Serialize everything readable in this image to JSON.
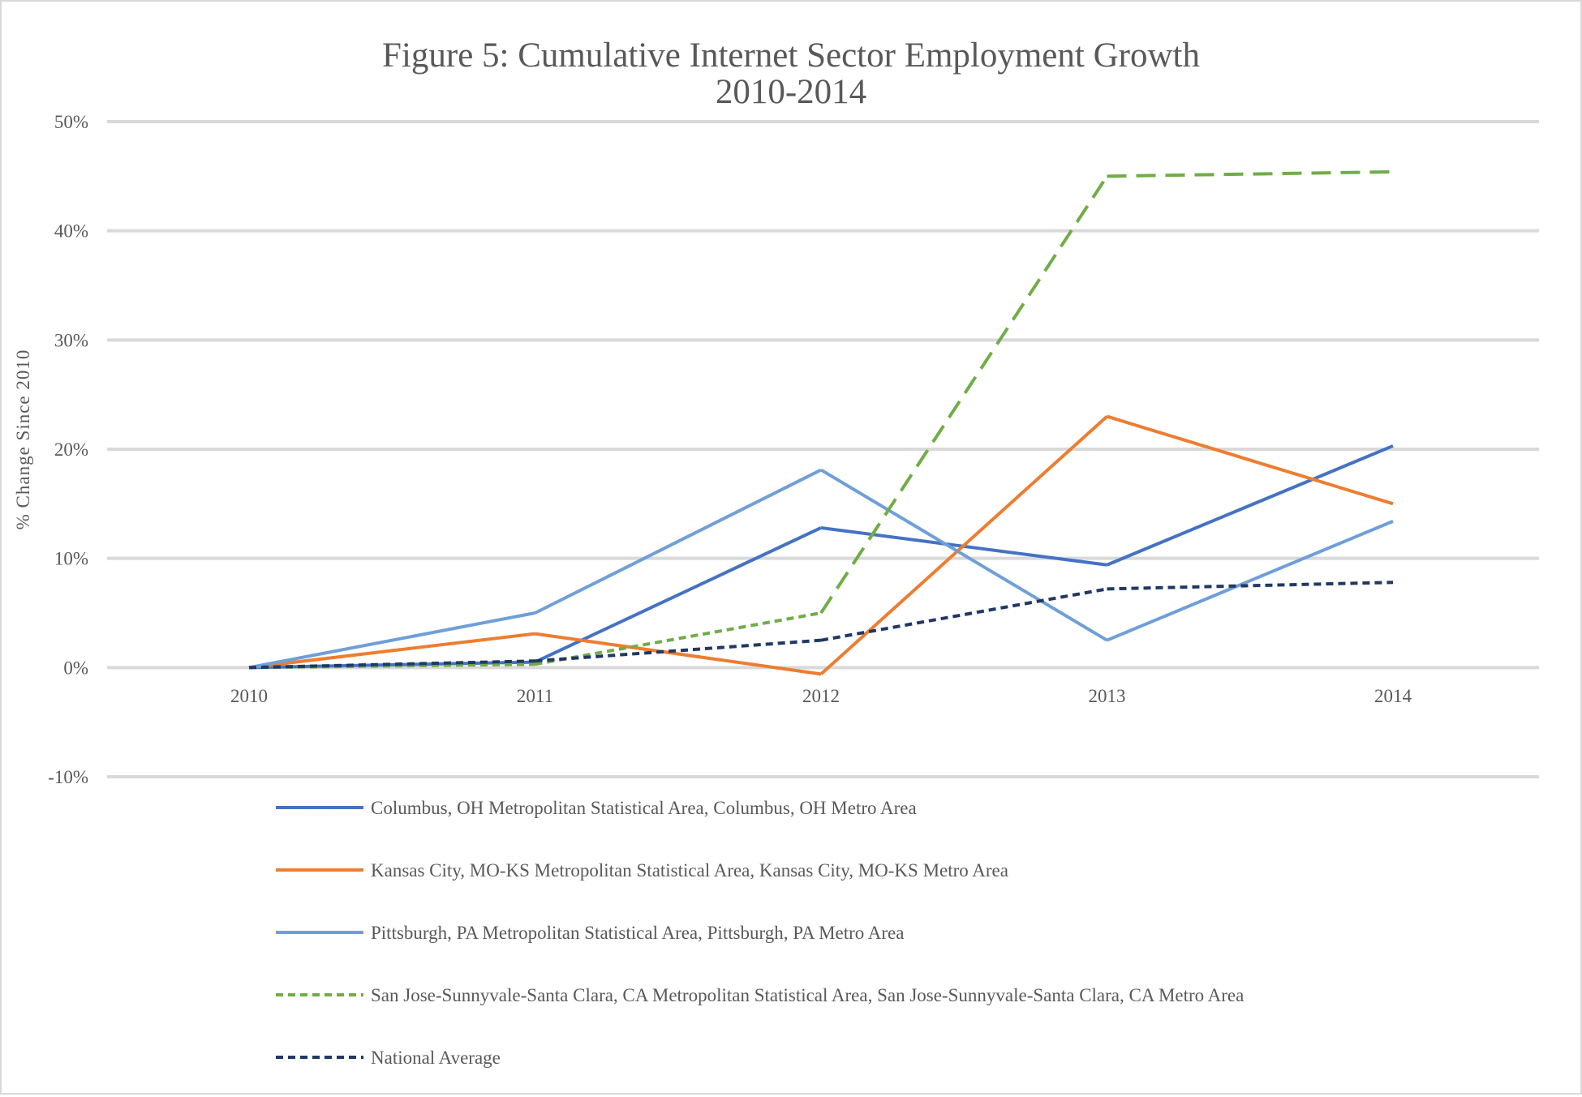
{
  "chart_data": {
    "type": "line",
    "title_lines": [
      "Figure 5: Cumulative Internet Sector Employment Growth",
      "2010-2014"
    ],
    "xlabel": "",
    "ylabel": "% Change Since 2010",
    "categories": [
      "2010",
      "2011",
      "2012",
      "2013",
      "2014"
    ],
    "ylim": [
      -10,
      50
    ],
    "yticks": [
      -10,
      0,
      10,
      20,
      30,
      40,
      50
    ],
    "ytick_labels": [
      "-10%",
      "0%",
      "10%",
      "20%",
      "30%",
      "40%",
      "50%"
    ],
    "grid": true,
    "legend_position": "bottom",
    "series": [
      {
        "name": "Columbus, OH Metropolitan Statistical Area, Columbus, OH Metro Area",
        "values": [
          0,
          0.5,
          12.8,
          9.4,
          20.3
        ],
        "color": "#4472c4",
        "dash": "solid"
      },
      {
        "name": "Kansas City, MO-KS Metropolitan Statistical Area, Kansas City, MO-KS Metro Area",
        "values": [
          0,
          3.1,
          -0.6,
          23.0,
          15.0
        ],
        "color": "#ed7d31",
        "dash": "solid"
      },
      {
        "name": "Pittsburgh, PA Metropolitan Statistical Area, Pittsburgh, PA Metro Area",
        "values": [
          0,
          5.0,
          18.1,
          2.5,
          13.4
        ],
        "color": "#6e9fd9",
        "dash": "solid"
      },
      {
        "name": "San Jose-Sunnyvale-Santa Clara, CA Metropolitan Statistical Area, San Jose-Sunnyvale-Santa Clara, CA Metro Area",
        "values": [
          0,
          0.3,
          5.0,
          45.0,
          45.4
        ],
        "color": "#70ad47",
        "dash": "mixed"
      },
      {
        "name": "National Average",
        "values": [
          0,
          0.6,
          2.5,
          7.2,
          7.8
        ],
        "color": "#203864",
        "dash": "short"
      }
    ]
  }
}
